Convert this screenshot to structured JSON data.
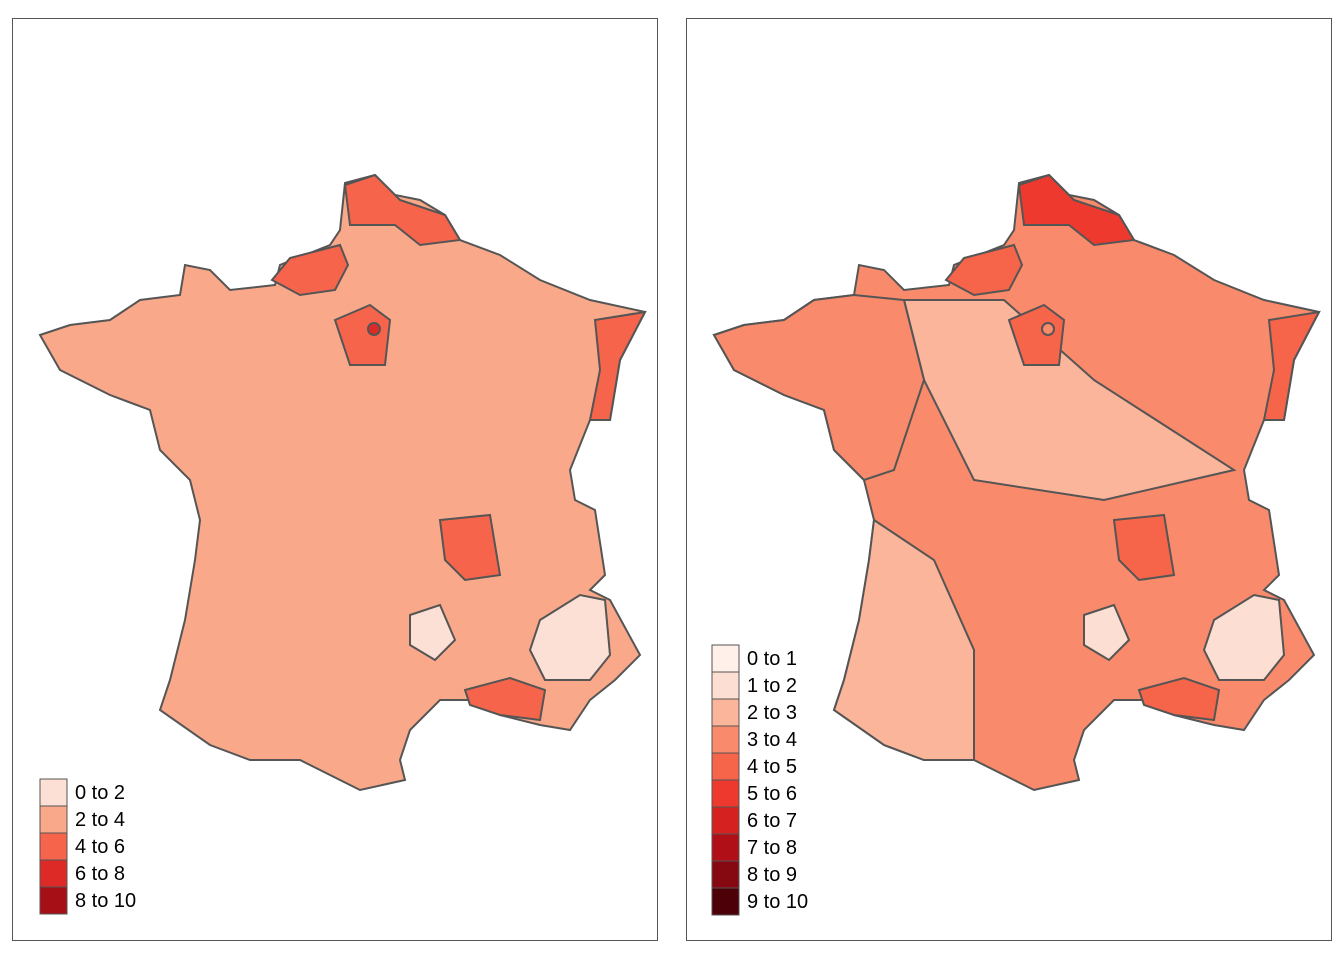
{
  "maps": [
    {
      "legend": {
        "items": [
          {
            "label": "0 to 2",
            "color": "#fde0d5"
          },
          {
            "label": "2 to 4",
            "color": "#f9a98a"
          },
          {
            "label": "4 to 6",
            "color": "#f6654b"
          },
          {
            "label": "6 to 8",
            "color": "#de2a26"
          },
          {
            "label": "8 to 10",
            "color": "#a50f15"
          }
        ]
      }
    },
    {
      "legend": {
        "items": [
          {
            "label": "0 to 1",
            "color": "#fff0e9"
          },
          {
            "label": "1 to 2",
            "color": "#fdded2"
          },
          {
            "label": "2 to 3",
            "color": "#fbb59a"
          },
          {
            "label": "3 to 4",
            "color": "#f98a6b"
          },
          {
            "label": "4 to 5",
            "color": "#f6644a"
          },
          {
            "label": "5 to 6",
            "color": "#ee3a2e"
          },
          {
            "label": "6 to 7",
            "color": "#d52221"
          },
          {
            "label": "7 to 8",
            "color": "#b10f18"
          },
          {
            "label": "8 to 9",
            "color": "#860811"
          },
          {
            "label": "9 to 10",
            "color": "#4e0008"
          }
        ]
      }
    }
  ]
}
